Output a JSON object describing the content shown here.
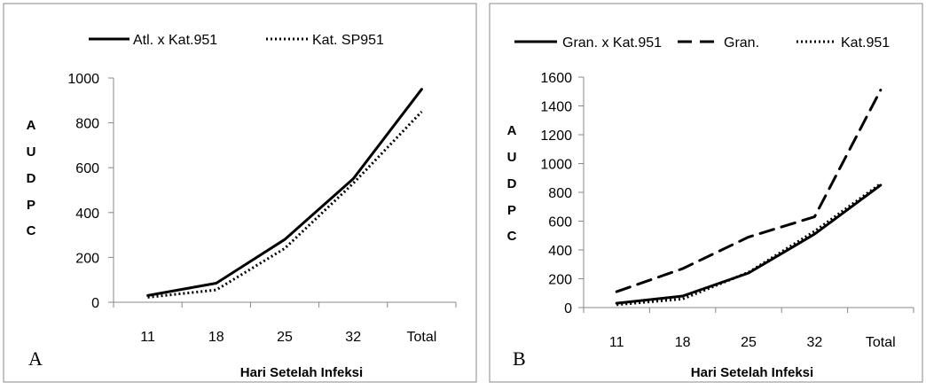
{
  "chart_data": [
    {
      "type": "line",
      "panel_label": "A",
      "categories": [
        "11",
        "18",
        "25",
        "32",
        "Total"
      ],
      "xlabel": "Hari Setelah Infeksi",
      "ylabel": "AUDPC",
      "ylabel_letters": [
        "A",
        "U",
        "D",
        "P",
        "C"
      ],
      "ylim": [
        0,
        1000
      ],
      "yticks": [
        0,
        200,
        400,
        600,
        800,
        1000
      ],
      "grid": false,
      "legend_position": "top",
      "series": [
        {
          "name": "Atl. x Kat.951",
          "style": "solid",
          "values": [
            30,
            85,
            280,
            550,
            950
          ]
        },
        {
          "name": "Kat. SP951",
          "style": "dotted",
          "values": [
            22,
            55,
            240,
            530,
            850
          ]
        }
      ]
    },
    {
      "type": "line",
      "panel_label": "B",
      "categories": [
        "11",
        "18",
        "25",
        "32",
        "Total"
      ],
      "xlabel": "Hari Setelah Infeksi",
      "ylabel": "AUDPC",
      "ylabel_letters": [
        "A",
        "U",
        "D",
        "P",
        "C"
      ],
      "ylim": [
        0,
        1600
      ],
      "yticks": [
        0,
        200,
        400,
        600,
        800,
        1000,
        1200,
        1400,
        1600
      ],
      "grid": false,
      "legend_position": "top",
      "series": [
        {
          "name": "Gran. x Kat.951",
          "style": "solid",
          "values": [
            30,
            80,
            240,
            510,
            850
          ]
        },
        {
          "name": "Gran.",
          "style": "dashed",
          "values": [
            110,
            270,
            490,
            630,
            1510
          ]
        },
        {
          "name": "Kat.951",
          "style": "dotted",
          "values": [
            20,
            60,
            245,
            530,
            860
          ]
        }
      ]
    }
  ]
}
